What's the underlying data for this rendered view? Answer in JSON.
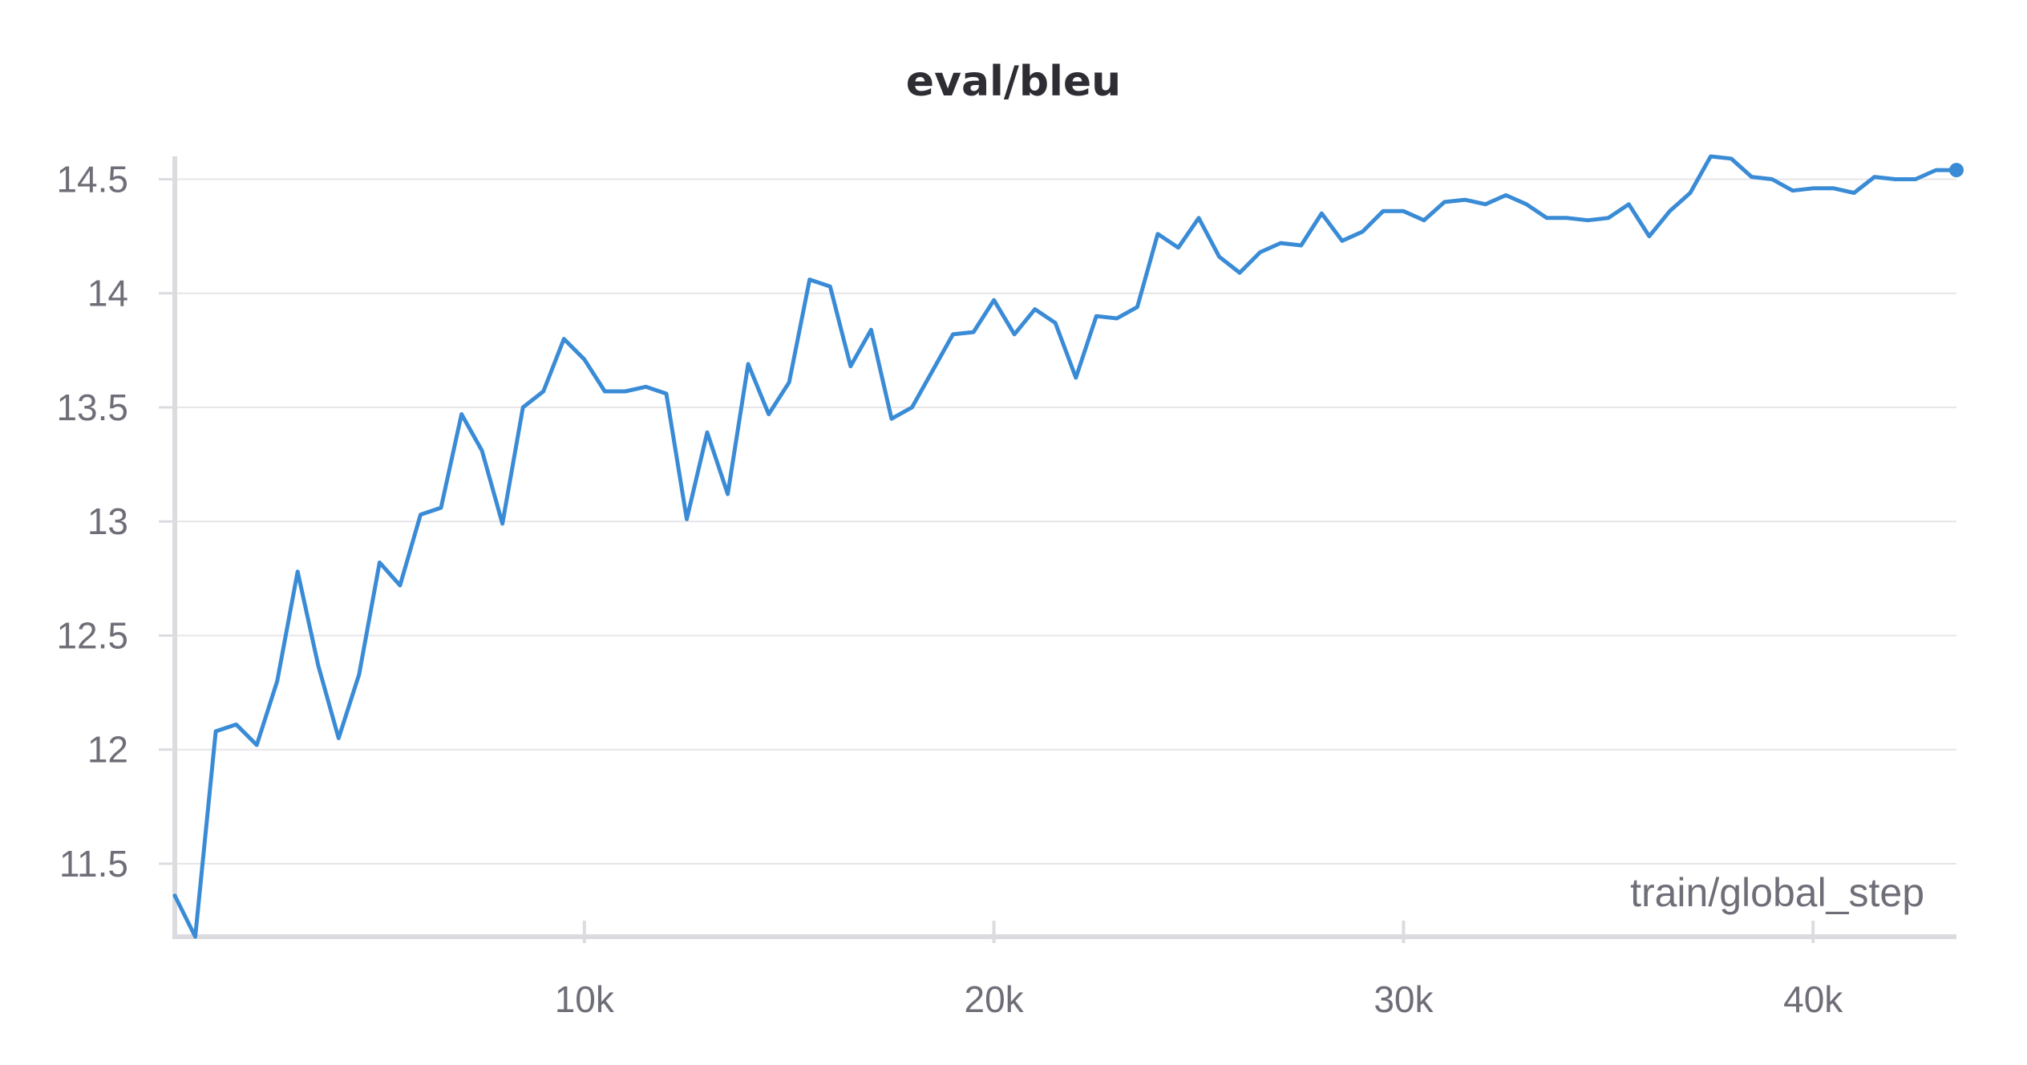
{
  "chart_data": {
    "type": "line",
    "title": "eval/bleu",
    "xlabel": "train/global_step",
    "ylabel": "",
    "xlim": [
      0,
      43500
    ],
    "ylim": [
      11.18,
      14.6
    ],
    "x_ticks": [
      10000,
      20000,
      30000,
      40000
    ],
    "x_tick_labels": [
      "10k",
      "20k",
      "30k",
      "40k"
    ],
    "y_ticks": [
      11.5,
      12,
      12.5,
      13,
      13.5,
      14,
      14.5
    ],
    "y_tick_labels": [
      "11.5",
      "12",
      "12.5",
      "13",
      "13.5",
      "14",
      "14.5"
    ],
    "grid": "horizontal",
    "line_color": "#3a8bd6",
    "series": [
      {
        "x": [
          0,
          500,
          1000,
          1500,
          2000,
          2500,
          3000,
          3500,
          4000,
          4500,
          5000,
          5500,
          6000,
          6500,
          7000,
          7500,
          8000,
          8500,
          9000,
          9500,
          10000,
          10500,
          11000,
          11500,
          12000,
          12500,
          13000,
          13500,
          14000,
          14500,
          15000,
          15500,
          16000,
          16500,
          17000,
          17500,
          18000,
          18500,
          19000,
          19500,
          20000,
          20500,
          21000,
          21500,
          22000,
          22500,
          23000,
          23500,
          24000,
          24500,
          25000,
          25500,
          26000,
          26500,
          27000,
          27500,
          28000,
          28500,
          29000,
          29500,
          30000,
          30500,
          31000,
          31500,
          32000,
          32500,
          33000,
          33500,
          34000,
          34500,
          35000,
          35500,
          36000,
          36500,
          37000,
          37500,
          38000,
          38500,
          39000,
          39500,
          40000,
          40500,
          41000,
          41500,
          42000,
          42500,
          43000,
          43500
        ],
        "y": [
          11.36,
          11.18,
          12.08,
          12.11,
          12.02,
          12.3,
          12.78,
          12.37,
          12.05,
          12.33,
          12.82,
          12.72,
          13.03,
          13.06,
          13.47,
          13.31,
          12.99,
          13.5,
          13.57,
          13.8,
          13.71,
          13.57,
          13.57,
          13.59,
          13.56,
          13.01,
          13.39,
          13.12,
          13.69,
          13.47,
          13.61,
          14.06,
          14.03,
          13.68,
          13.84,
          13.45,
          13.5,
          13.66,
          13.82,
          13.83,
          13.97,
          13.82,
          13.93,
          13.87,
          13.63,
          13.9,
          13.89,
          13.94,
          14.26,
          14.2,
          14.33,
          14.16,
          14.09,
          14.18,
          14.22,
          14.21,
          14.35,
          14.23,
          14.27,
          14.36,
          14.36,
          14.32,
          14.4,
          14.41,
          14.39,
          14.43,
          14.39,
          14.33,
          14.33,
          14.32,
          14.33,
          14.39,
          14.25,
          14.36,
          14.44,
          14.6,
          14.59,
          14.51,
          14.5,
          14.45,
          14.46,
          14.46,
          14.44,
          14.51,
          14.5,
          14.5,
          14.54,
          14.54
        ]
      }
    ]
  }
}
